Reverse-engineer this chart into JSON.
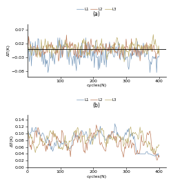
{
  "subplot_a": {
    "title": "(a)",
    "ylabel": "ΔT(K)",
    "xlabel": "cycles(N)",
    "ylim": [
      -0.1,
      0.09
    ],
    "yticks": [
      0.07,
      0.02,
      -0.03,
      -0.08
    ],
    "xlim": [
      0,
      420
    ],
    "xticks": [
      100,
      200,
      300,
      400
    ],
    "hline_y": 0.0,
    "legend": [
      "L1",
      "L2",
      "L3"
    ],
    "colors": [
      "#7799bb",
      "#bb7755",
      "#bbaa66"
    ],
    "linewidth": 0.5
  },
  "subplot_b": {
    "title": "(b)",
    "ylabel": "ΔT(K)",
    "xlabel": "cycles(N)",
    "ylim": [
      0,
      0.155
    ],
    "yticks": [
      0,
      0.02,
      0.04,
      0.06,
      0.08,
      0.1,
      0.12,
      0.14
    ],
    "xlim": [
      0,
      420
    ],
    "xticks": [
      0,
      100,
      200,
      300,
      400
    ],
    "legend": [
      "L1",
      "L2",
      "L3"
    ],
    "colors": [
      "#7799bb",
      "#bb7755",
      "#bbaa66"
    ],
    "linewidth": 0.5
  },
  "fig_width": 2.48,
  "fig_height": 2.66,
  "dpi": 100
}
